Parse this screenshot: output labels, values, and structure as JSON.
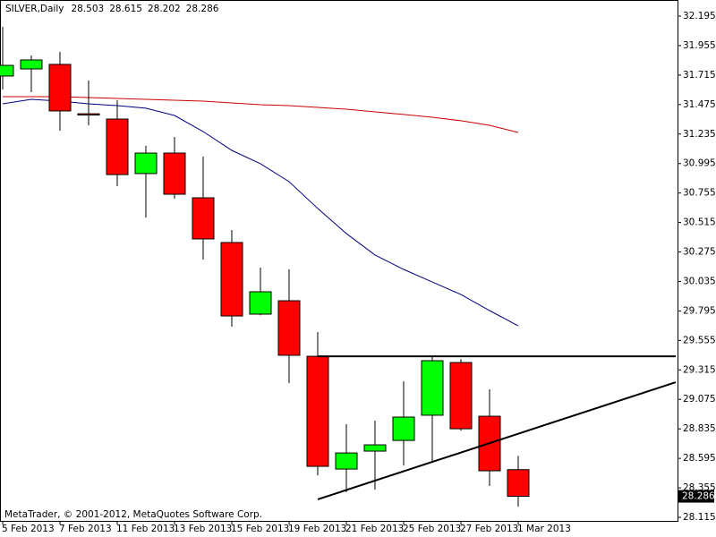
{
  "chart_data": {
    "type": "candlestick",
    "title": "SILVER,Daily",
    "copyright": "MetaTrader, © 2001-2012, MetaQuotes Software Corp.",
    "categories": [
      "5 Feb 2013",
      null,
      "7 Feb 2013",
      null,
      "11 Feb 2013",
      null,
      "13 Feb 2013",
      null,
      "15 Feb 2013",
      null,
      "19 Feb 2013",
      null,
      "21 Feb 2013",
      null,
      "25 Feb 2013",
      null,
      "27 Feb 2013",
      null,
      "1 Mar 2013"
    ],
    "open": [
      31.707,
      31.765,
      31.802,
      31.4,
      31.357,
      30.913,
      31.08,
      30.716,
      30.352,
      29.769,
      29.878,
      29.426,
      28.508,
      28.654,
      28.741,
      28.946,
      29.375,
      28.938,
      28.503
    ],
    "high": [
      32.108,
      31.874,
      31.904,
      31.67,
      31.51,
      31.139,
      31.211,
      31.051,
      30.454,
      30.148,
      30.133,
      29.623,
      28.873,
      28.902,
      29.222,
      29.434,
      29.404,
      29.157,
      28.615
    ],
    "low": [
      31.598,
      31.576,
      31.262,
      31.306,
      30.811,
      30.556,
      30.709,
      30.213,
      29.667,
      29.76,
      29.208,
      28.457,
      28.319,
      28.341,
      28.537,
      28.574,
      28.82,
      28.37,
      28.202
    ],
    "close": [
      31.794,
      31.838,
      31.423,
      31.39,
      30.905,
      31.08,
      30.745,
      30.381,
      29.754,
      29.951,
      29.434,
      28.53,
      28.639,
      28.705,
      28.931,
      29.39,
      28.836,
      28.494,
      28.286
    ],
    "up_color": "#00ff00",
    "down_color": "#ff0000",
    "moving_averages": [
      {
        "color": "#000080",
        "values": [
          31.481,
          31.517,
          31.503,
          31.481,
          31.466,
          31.445,
          31.386,
          31.255,
          31.102,
          30.993,
          30.847,
          30.629,
          30.425,
          30.25,
          30.133,
          30.031,
          29.929,
          29.798,
          29.674
        ]
      },
      {
        "color": "#cc0000",
        "values": [
          31.539,
          31.539,
          31.539,
          31.532,
          31.525,
          31.517,
          31.51,
          31.503,
          31.488,
          31.474,
          31.466,
          31.452,
          31.437,
          31.415,
          31.394,
          31.372,
          31.343,
          31.306,
          31.248
        ]
      }
    ],
    "trend_lines": [
      {
        "x": [
          11,
          23.5
        ],
        "y": [
          29.426,
          29.426
        ]
      },
      {
        "x": [
          11,
          23.5
        ],
        "y": [
          28.261,
          29.215
        ]
      }
    ],
    "ylim": [
      28.086,
      32.326
    ],
    "yticks": [
      32.195,
      31.955,
      31.715,
      31.475,
      31.235,
      30.995,
      30.755,
      30.515,
      30.275,
      30.035,
      29.795,
      29.555,
      29.315,
      29.075,
      28.835,
      28.595,
      28.355,
      28.115
    ]
  }
}
